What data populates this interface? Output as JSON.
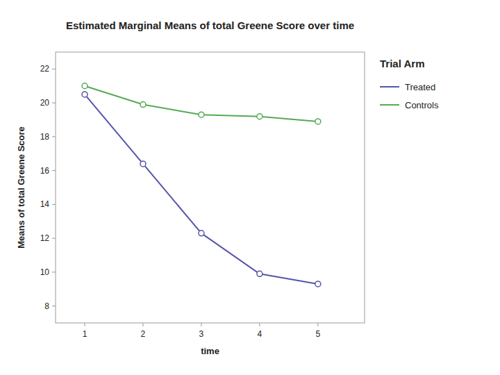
{
  "chart_data": {
    "type": "line",
    "title": "Estimated Marginal Means of total Greene Score over time",
    "xlabel": "time",
    "ylabel": "Means of total Greene Score",
    "x": [
      1,
      2,
      3,
      4,
      5
    ],
    "series": [
      {
        "name": "Treated",
        "color": "#5555aa",
        "values": [
          20.5,
          16.4,
          12.3,
          9.9,
          9.3
        ]
      },
      {
        "name": "Controls",
        "color": "#55aa55",
        "values": [
          21.0,
          19.9,
          19.3,
          19.2,
          18.9
        ]
      }
    ],
    "xlim": [
      0.5,
      5.8
    ],
    "ylim": [
      7,
      23
    ],
    "xticks": [
      1,
      2,
      3,
      4,
      5
    ],
    "yticks": [
      8,
      10,
      12,
      14,
      16,
      18,
      20,
      22
    ],
    "legend_title": "Trial Arm",
    "legend": "right",
    "marker": "circle",
    "grid": false
  }
}
